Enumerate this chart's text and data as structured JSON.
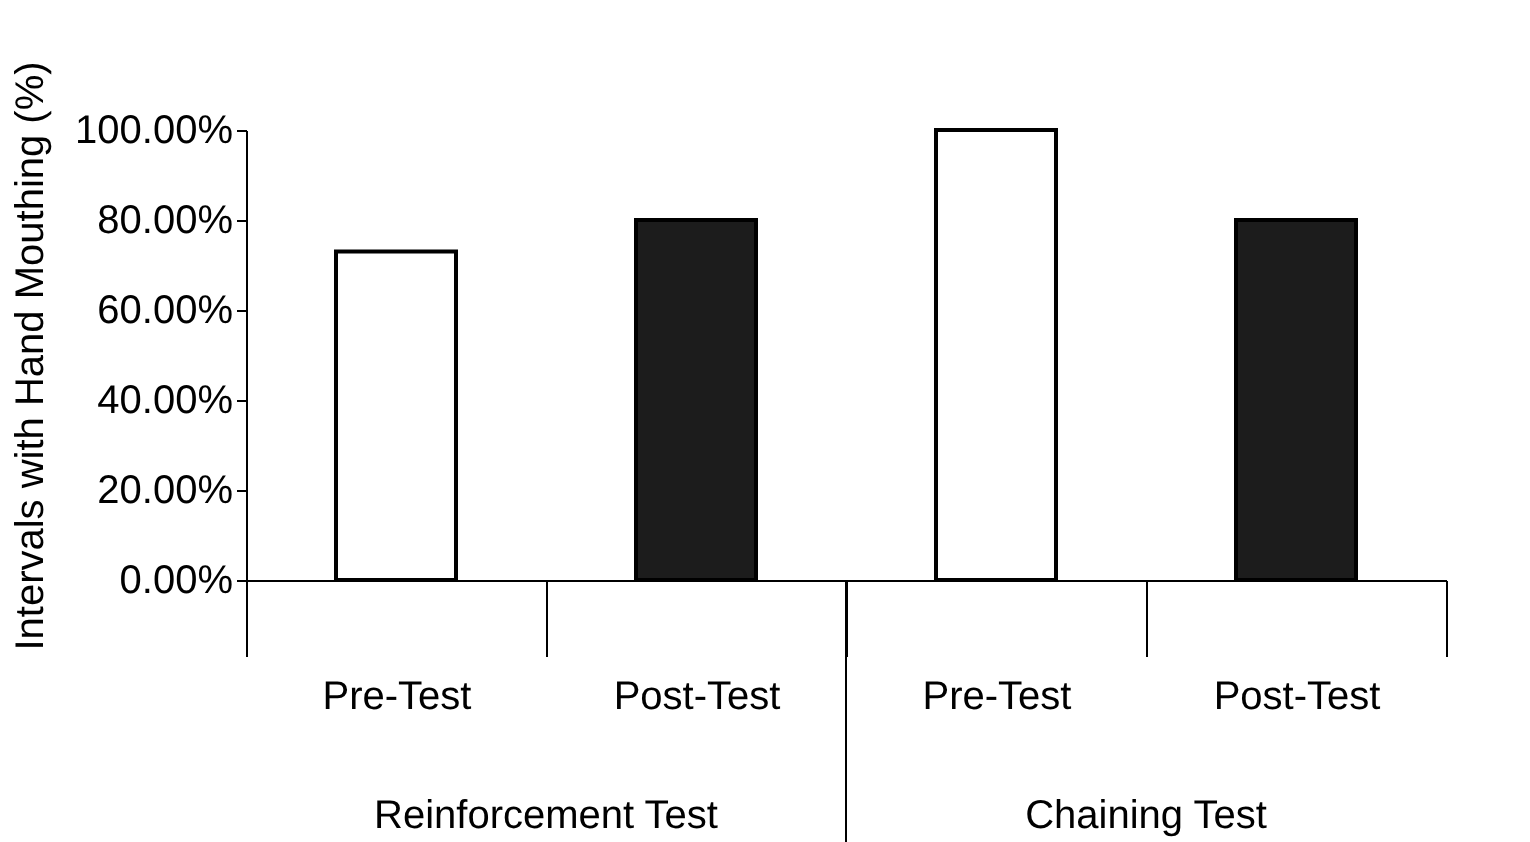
{
  "chart_data": {
    "type": "bar",
    "ylabel": "Intervals with Hand Mouthing (%)",
    "categories": [
      "Pre-Test",
      "Post-Test",
      "Pre-Test",
      "Post-Test"
    ],
    "values": [
      73,
      80,
      100,
      80
    ],
    "colors": [
      "#ffffff",
      "#1c1c1c",
      "#ffffff",
      "#1c1c1c"
    ],
    "ylim": [
      0,
      100
    ],
    "yticks": [
      {
        "value": 0,
        "label": "0.00%"
      },
      {
        "value": 20,
        "label": "20.00%"
      },
      {
        "value": 40,
        "label": "40.00%"
      },
      {
        "value": 60,
        "label": "60.00%"
      },
      {
        "value": 80,
        "label": "80.00%"
      },
      {
        "value": 100,
        "label": "100.00%"
      }
    ],
    "annotations": [
      "Reinforcement Test",
      "Chaining Test"
    ],
    "grid": false,
    "legend": false
  }
}
